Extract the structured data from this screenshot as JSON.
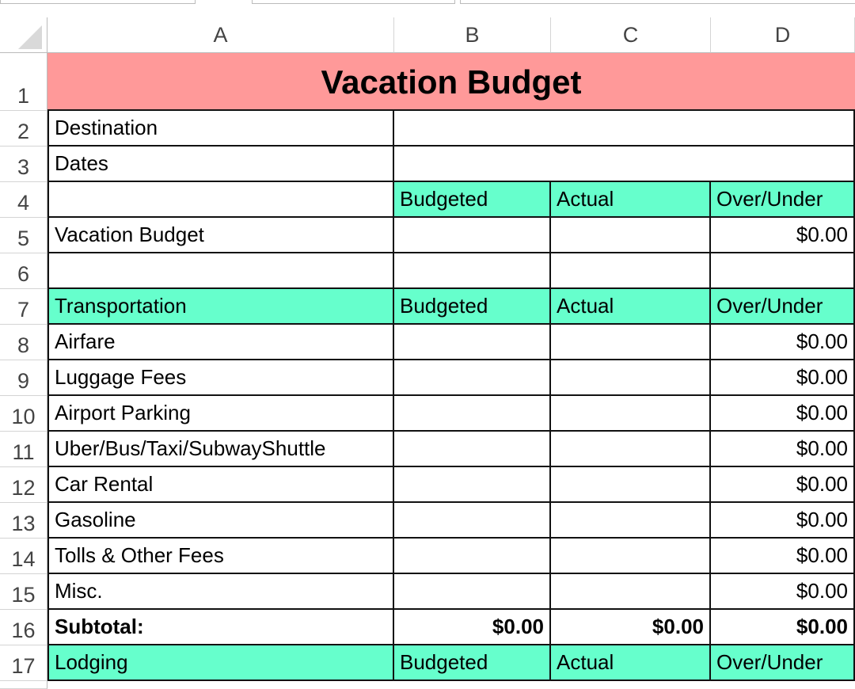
{
  "colors": {
    "header_fill": "#66ffcc",
    "title_fill": "#ff9999"
  },
  "columns": [
    "A",
    "B",
    "C",
    "D"
  ],
  "title": "Vacation Budget",
  "rows": [
    {
      "num": "2",
      "cells": [
        "Destination",
        "",
        "",
        ""
      ],
      "merge": true
    },
    {
      "num": "3",
      "cells": [
        "Dates",
        "",
        "",
        ""
      ],
      "merge": true
    },
    {
      "num": "4",
      "cells": [
        "",
        "Budgeted",
        "Actual",
        "Over/Under"
      ],
      "header": true,
      "blankA": true
    },
    {
      "num": "5",
      "cells": [
        "Vacation Budget",
        "",
        "",
        "$0.00"
      ]
    },
    {
      "num": "6",
      "cells": [
        "",
        "",
        "",
        ""
      ]
    },
    {
      "num": "7",
      "cells": [
        "Transportation",
        "Budgeted",
        "Actual",
        "Over/Under"
      ],
      "header": true
    },
    {
      "num": "8",
      "cells": [
        "Airfare",
        "",
        "",
        "$0.00"
      ]
    },
    {
      "num": "9",
      "cells": [
        "Luggage Fees",
        "",
        "",
        "$0.00"
      ]
    },
    {
      "num": "10",
      "cells": [
        "Airport Parking",
        "",
        "",
        "$0.00"
      ]
    },
    {
      "num": "11",
      "cells": [
        "Uber/Bus/Taxi/SubwayShuttle",
        "",
        "",
        "$0.00"
      ]
    },
    {
      "num": "12",
      "cells": [
        "Car Rental",
        "",
        "",
        "$0.00"
      ]
    },
    {
      "num": "13",
      "cells": [
        "Gasoline",
        "",
        "",
        "$0.00"
      ]
    },
    {
      "num": "14",
      "cells": [
        "Tolls & Other Fees",
        "",
        "",
        "$0.00"
      ]
    },
    {
      "num": "15",
      "cells": [
        "Misc.",
        "",
        "",
        "$0.00"
      ]
    },
    {
      "num": "16",
      "cells": [
        "Subtotal:",
        "$0.00",
        "$0.00",
        "$0.00"
      ],
      "bold": true
    },
    {
      "num": "17",
      "cells": [
        "Lodging",
        "Budgeted",
        "Actual",
        "Over/Under"
      ],
      "header": true
    }
  ],
  "row1_num": "1"
}
